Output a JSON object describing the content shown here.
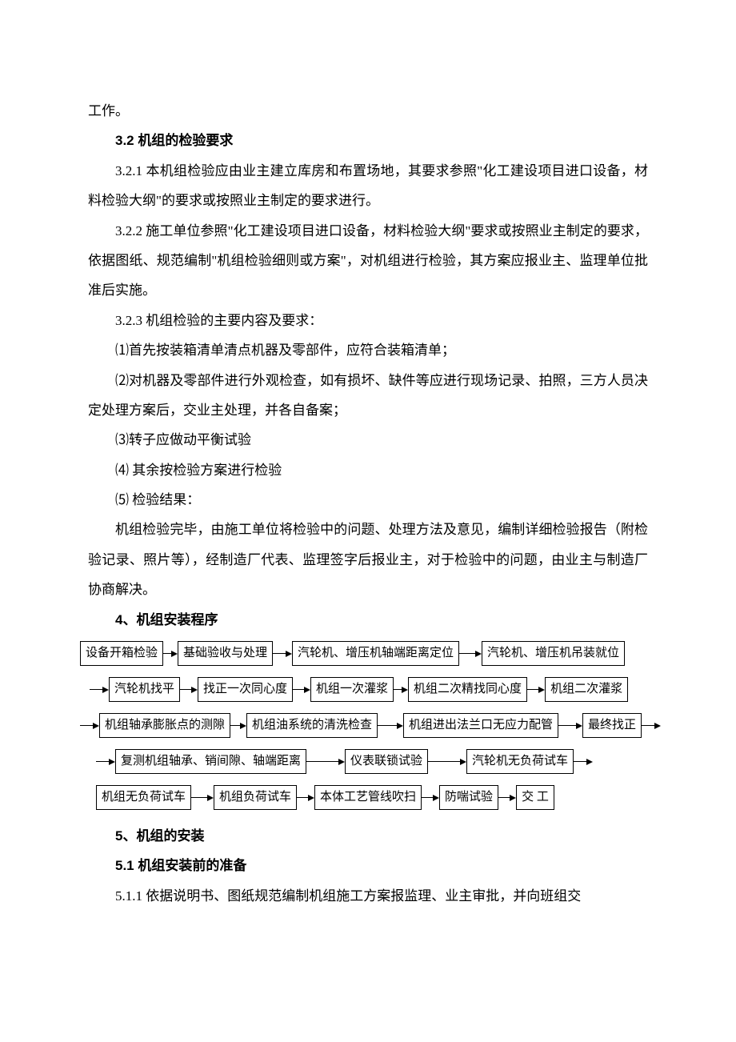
{
  "doc": {
    "p0": "工作。",
    "h32": "3.2 机组的检验要求",
    "p321": "3.2.1 本机组检验应由业主建立库房和布置场地，其要求参照\"化工建设项目进口设备，材料检验大纲\"的要求或按照业主制定的要求进行。",
    "p322": "3.2.2 施工单位参照\"化工建设项目进口设备，材料检验大纲\"要求或按照业主制定的要求，依据图纸、规范编制\"机组检验细则或方案\"，对机组进行检验，其方案应报业主、监理单位批准后实施。",
    "p323": "3.2.3 机组检验的主要内容及要求：",
    "p323_1": "⑴首先按装箱清单清点机器及零部件，应符合装箱清单；",
    "p323_2": "⑵对机器及零部件进行外观检查，如有损坏、缺件等应进行现场记录、拍照，三方人员决定处理方案后，交业主处理，并各自备案；",
    "p323_3": "⑶转子应做动平衡试验",
    "p323_4": "⑷ 其余按检验方案进行检验",
    "p323_5": "⑸ 检验结果：",
    "p323_r": "机组检验完毕，由施工单位将检验中的问题、处理方法及意见，编制详细检验报告（附检验记录、照片等），经制造厂代表、监理签字后报业主，对于检验中的问题，由业主与制造厂协商解决。",
    "h4": "4、机组安装程序",
    "h5": "5、机组的安装",
    "h51": "5.1 机组安装前的准备",
    "p511": "5.1.1 依据说明书、图纸规范编制机组施工方案报监理、业主审批，并向班组交"
  },
  "flow": {
    "rows": [
      {
        "lead_arrow": false,
        "trail_arrow": false,
        "boxes": [
          "设备开箱检验",
          "基础验收与处理",
          "汽轮机、增压机轴端距离定位",
          "汽轮机、增压机吊装就位"
        ],
        "gaps": [
          10,
          16,
          20
        ]
      },
      {
        "lead_arrow": true,
        "trail_arrow": false,
        "lead_pad": 12,
        "boxes": [
          "汽轮机找平",
          "找正一次同心度",
          "机组一次灌浆",
          "机组二次精找同心度",
          "机组二次灌浆"
        ],
        "gaps": [
          14,
          14,
          10,
          14
        ]
      },
      {
        "lead_arrow": true,
        "trail_arrow": true,
        "lead_pad": 0,
        "boxes": [
          "机组轴承膨胀点的测隙",
          "机组油系统的清洗检查",
          "机组进出法兰口无应力配管",
          "最终找正"
        ],
        "gaps": [
          12,
          24,
          22
        ]
      },
      {
        "lead_arrow": true,
        "trail_arrow": true,
        "lead_pad": 20,
        "boxes": [
          "复测机组轴承、销间隙、轴端距离",
          "仪表联锁试验",
          "汽轮机无负荷试车"
        ],
        "gaps": [
          40,
          40
        ]
      },
      {
        "lead_arrow": false,
        "trail_arrow": false,
        "lead_pad": 20,
        "boxes": [
          "机组无负荷试车",
          "机组负荷试车",
          "本体工艺管线吹扫",
          "防喘试验",
          "交 工"
        ],
        "gaps": [
          20,
          14,
          14,
          14
        ]
      }
    ],
    "arrow_line_color": "#000000",
    "box_border_color": "#000000",
    "text_color": "#000000",
    "font_size_body": 17,
    "font_size_flow": 15,
    "line_height": 2.2,
    "background": "#ffffff"
  }
}
